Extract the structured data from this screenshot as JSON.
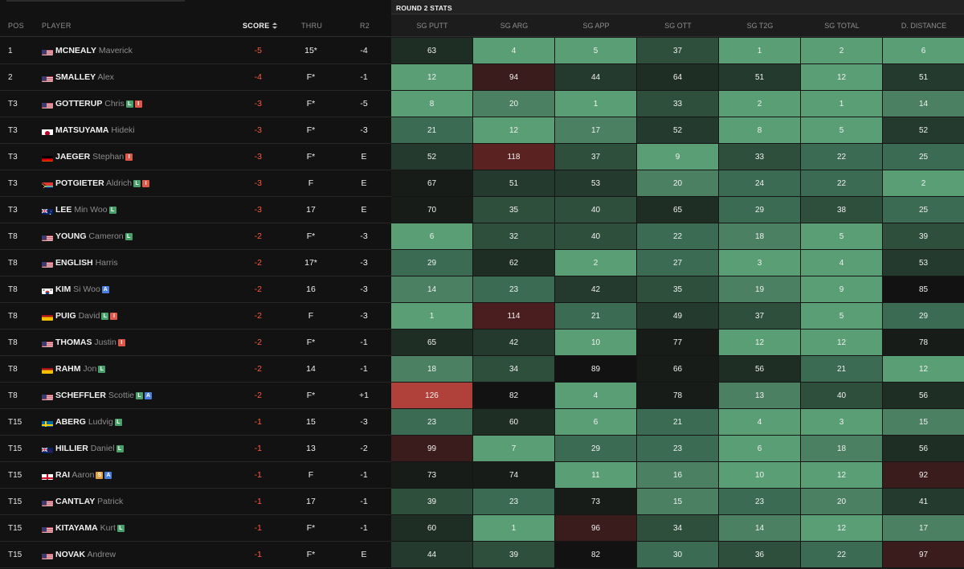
{
  "headers": {
    "pos": "POS",
    "player": "PLAYER",
    "score": "SCORE",
    "thru": "THRU",
    "r2": "R2"
  },
  "stats_title": "ROUND 2 STATS",
  "stat_headers": [
    "SG PUTT",
    "SG ARG",
    "SG APP",
    "SG OTT",
    "SG T2G",
    "SG TOTAL",
    "D. DISTANCE"
  ],
  "colors": {
    "score_red": "#ff5a3c",
    "heat_best": "#5a9e76",
    "heat_worst": "#b0413a"
  },
  "players": [
    {
      "pos": "1",
      "country": "USA",
      "last": "MCNEALY",
      "first": "Maverick",
      "badges": [],
      "score": "-5",
      "thru": "15*",
      "r2": "-4",
      "stats": [
        63,
        4,
        5,
        37,
        1,
        2,
        6
      ]
    },
    {
      "pos": "2",
      "country": "USA",
      "last": "SMALLEY",
      "first": "Alex",
      "badges": [],
      "score": "-4",
      "thru": "F*",
      "r2": "-1",
      "stats": [
        12,
        94,
        44,
        64,
        51,
        12,
        51
      ]
    },
    {
      "pos": "T3",
      "country": "USA",
      "last": "GOTTERUP",
      "first": "Chris",
      "badges": [
        "L",
        "I"
      ],
      "score": "-3",
      "thru": "F*",
      "r2": "-5",
      "stats": [
        8,
        20,
        1,
        33,
        2,
        1,
        14
      ]
    },
    {
      "pos": "T3",
      "country": "JPN",
      "last": "MATSUYAMA",
      "first": "Hideki",
      "badges": [],
      "score": "-3",
      "thru": "F*",
      "r2": "-3",
      "stats": [
        21,
        12,
        17,
        52,
        8,
        5,
        52
      ]
    },
    {
      "pos": "T3",
      "country": "GER",
      "last": "JAEGER",
      "first": "Stephan",
      "badges": [
        "I"
      ],
      "score": "-3",
      "thru": "F*",
      "r2": "E",
      "stats": [
        52,
        118,
        37,
        9,
        33,
        22,
        25
      ]
    },
    {
      "pos": "T3",
      "country": "RSA",
      "last": "POTGIETER",
      "first": "Aldrich",
      "badges": [
        "L",
        "I"
      ],
      "score": "-3",
      "thru": "F",
      "r2": "E",
      "stats": [
        67,
        51,
        53,
        20,
        24,
        22,
        2
      ]
    },
    {
      "pos": "T3",
      "country": "AUS",
      "last": "LEE",
      "first": "Min Woo",
      "badges": [
        "L"
      ],
      "score": "-3",
      "thru": "17",
      "r2": "E",
      "stats": [
        70,
        35,
        40,
        65,
        29,
        38,
        25
      ]
    },
    {
      "pos": "T8",
      "country": "USA",
      "last": "YOUNG",
      "first": "Cameron",
      "badges": [
        "L"
      ],
      "score": "-2",
      "thru": "F*",
      "r2": "-3",
      "stats": [
        6,
        32,
        40,
        22,
        18,
        5,
        39
      ]
    },
    {
      "pos": "T8",
      "country": "USA",
      "last": "ENGLISH",
      "first": "Harris",
      "badges": [],
      "score": "-2",
      "thru": "17*",
      "r2": "-3",
      "stats": [
        29,
        62,
        2,
        27,
        3,
        4,
        53
      ]
    },
    {
      "pos": "T8",
      "country": "KOR",
      "last": "KIM",
      "first": "Si Woo",
      "badges": [
        "A"
      ],
      "score": "-2",
      "thru": "16",
      "r2": "-3",
      "stats": [
        14,
        23,
        42,
        35,
        19,
        9,
        85
      ]
    },
    {
      "pos": "T8",
      "country": "ESP",
      "last": "PUIG",
      "first": "David",
      "badges": [
        "L",
        "I"
      ],
      "score": "-2",
      "thru": "F",
      "r2": "-3",
      "stats": [
        1,
        114,
        21,
        49,
        37,
        5,
        29
      ]
    },
    {
      "pos": "T8",
      "country": "USA",
      "last": "THOMAS",
      "first": "Justin",
      "badges": [
        "I"
      ],
      "score": "-2",
      "thru": "F*",
      "r2": "-1",
      "stats": [
        65,
        42,
        10,
        77,
        12,
        12,
        78
      ]
    },
    {
      "pos": "T8",
      "country": "ESP",
      "last": "RAHM",
      "first": "Jon",
      "badges": [
        "L"
      ],
      "score": "-2",
      "thru": "14",
      "r2": "-1",
      "stats": [
        18,
        34,
        89,
        66,
        56,
        21,
        12
      ]
    },
    {
      "pos": "T8",
      "country": "USA",
      "last": "SCHEFFLER",
      "first": "Scottie",
      "badges": [
        "L",
        "A"
      ],
      "score": "-2",
      "thru": "F*",
      "r2": "+1",
      "stats": [
        126,
        82,
        4,
        78,
        13,
        40,
        56
      ]
    },
    {
      "pos": "T15",
      "country": "SWE",
      "last": "ABERG",
      "first": "Ludvig",
      "badges": [
        "L"
      ],
      "score": "-1",
      "thru": "15",
      "r2": "-3",
      "stats": [
        23,
        60,
        6,
        21,
        4,
        3,
        15
      ]
    },
    {
      "pos": "T15",
      "country": "NZL",
      "last": "HILLIER",
      "first": "Daniel",
      "badges": [
        "L"
      ],
      "score": "-1",
      "thru": "13",
      "r2": "-2",
      "stats": [
        99,
        7,
        29,
        23,
        6,
        18,
        56
      ]
    },
    {
      "pos": "T15",
      "country": "ENG",
      "last": "RAI",
      "first": "Aaron",
      "badges": [
        "S",
        "A"
      ],
      "score": "-1",
      "thru": "F",
      "r2": "-1",
      "stats": [
        73,
        74,
        11,
        16,
        10,
        12,
        92
      ]
    },
    {
      "pos": "T15",
      "country": "USA",
      "last": "CANTLAY",
      "first": "Patrick",
      "badges": [],
      "score": "-1",
      "thru": "17",
      "r2": "-1",
      "stats": [
        39,
        23,
        73,
        15,
        23,
        20,
        41
      ]
    },
    {
      "pos": "T15",
      "country": "USA",
      "last": "KITAYAMA",
      "first": "Kurt",
      "badges": [
        "L"
      ],
      "score": "-1",
      "thru": "F*",
      "r2": "-1",
      "stats": [
        60,
        1,
        96,
        34,
        14,
        12,
        17
      ]
    },
    {
      "pos": "T15",
      "country": "USA",
      "last": "NOVAK",
      "first": "Andrew",
      "badges": [],
      "score": "-1",
      "thru": "F*",
      "r2": "E",
      "stats": [
        44,
        39,
        82,
        30,
        36,
        22,
        97
      ]
    }
  ]
}
